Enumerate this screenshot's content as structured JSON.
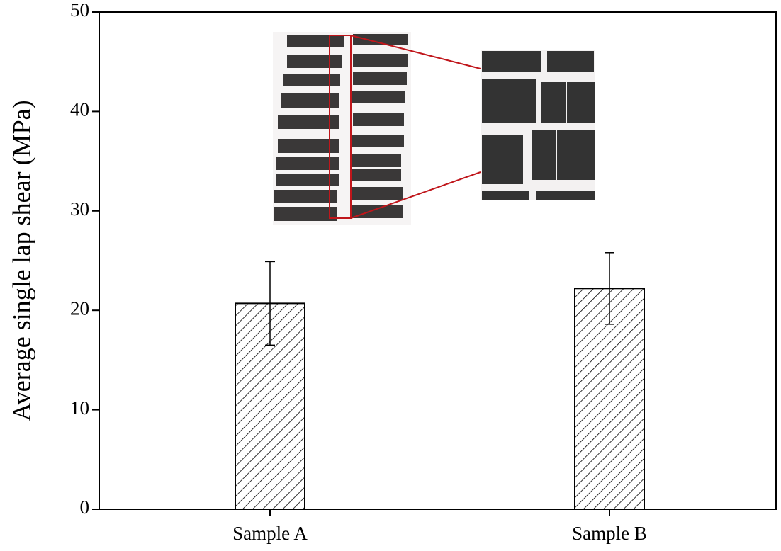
{
  "chart_data": {
    "type": "bar",
    "y_label": "Average single lap shear (MPa)",
    "categories": [
      "Sample A",
      "Sample B"
    ],
    "values": [
      20.7,
      22.2
    ],
    "errors": [
      4.2,
      3.6
    ],
    "color": "#000000",
    "ylim": [
      0,
      50
    ],
    "yticks": [
      0,
      10,
      20,
      30,
      40,
      50
    ]
  }
}
